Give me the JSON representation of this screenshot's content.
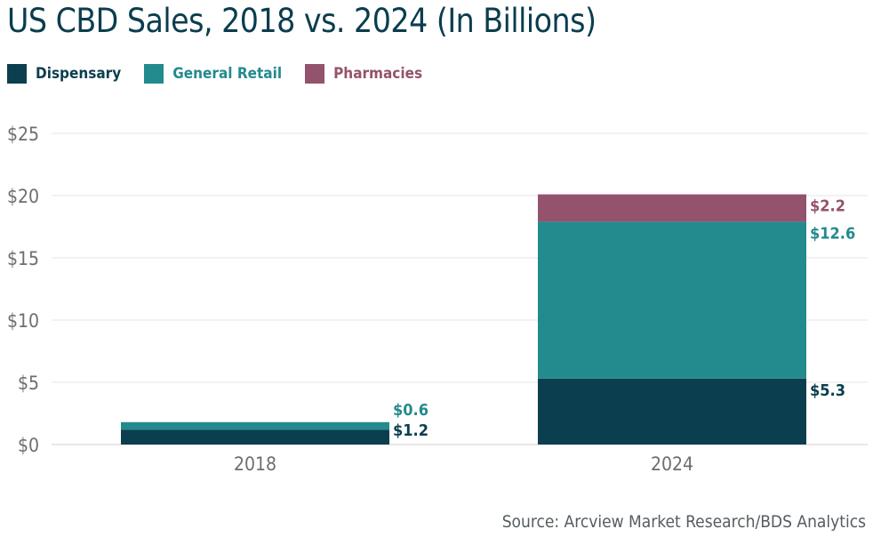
{
  "title": "US CBD Sales, 2018 vs. 2024 (In Billions)",
  "source": "Source: Arcview Market Research/BDS Analytics",
  "colors": {
    "dispensary": "#0b3f4f",
    "general_retail": "#238b8e",
    "pharmacies": "#94536c",
    "title": "#0b3d4e",
    "axis_text": "#6e6e6e",
    "grid": "#e4e4e4"
  },
  "legend": [
    {
      "label": "Dispensary",
      "color": "#0b3f4f"
    },
    {
      "label": "General Retail",
      "color": "#238b8e"
    },
    {
      "label": "Pharmacies",
      "color": "#94536c"
    }
  ],
  "chart_data": {
    "type": "bar",
    "stacked": true,
    "categories": [
      "2018",
      "2024"
    ],
    "series": [
      {
        "name": "Dispensary",
        "values": [
          1.2,
          5.3
        ],
        "labels": [
          "$1.2",
          "$5.3"
        ],
        "color": "#0b3f4f"
      },
      {
        "name": "General Retail",
        "values": [
          0.6,
          12.6
        ],
        "labels": [
          "$0.6",
          "$12.6"
        ],
        "color": "#238b8e"
      },
      {
        "name": "Pharmacies",
        "values": [
          0,
          2.2
        ],
        "labels": [
          "",
          "$2.2"
        ],
        "color": "#94536c"
      }
    ],
    "yticks": [
      0,
      5,
      10,
      15,
      20,
      25
    ],
    "ytick_labels": [
      "$0",
      "$5",
      "$10",
      "$15",
      "$20",
      "$25"
    ],
    "ylim": [
      0,
      25
    ],
    "grid": true,
    "legend_position": "top-left"
  }
}
